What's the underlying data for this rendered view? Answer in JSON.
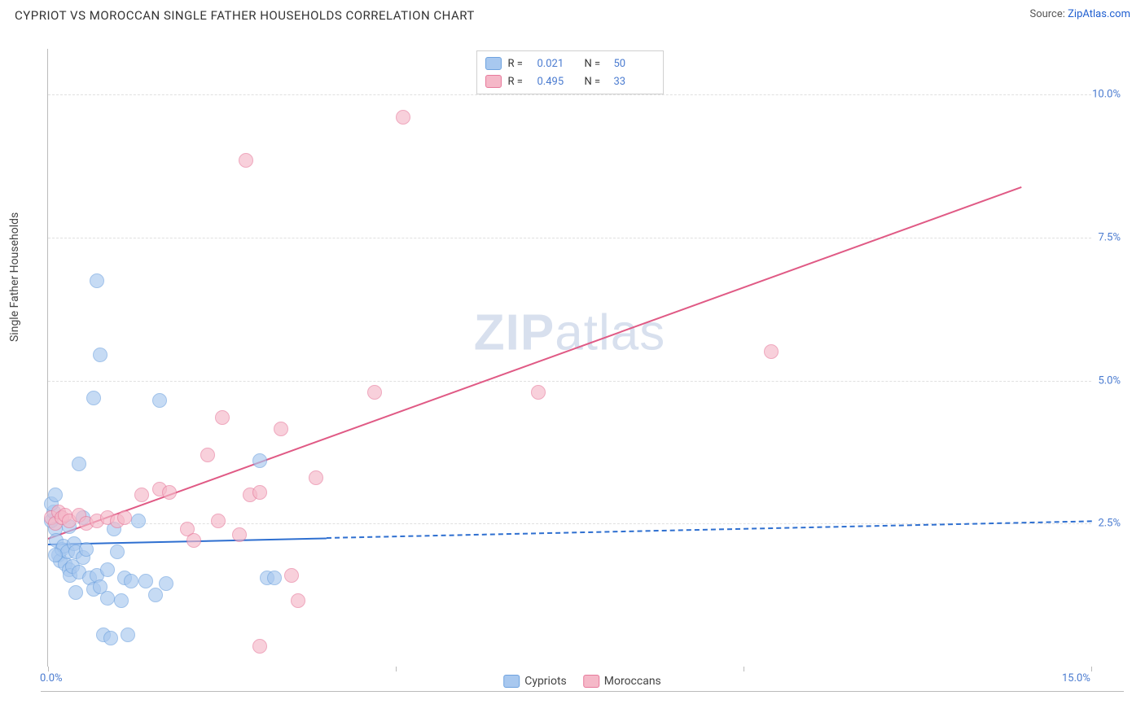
{
  "title": "CYPRIOT VS MOROCCAN SINGLE FATHER HOUSEHOLDS CORRELATION CHART",
  "source_label": "Source: ",
  "source_link_text": "ZipAtlas.com",
  "ylabel": "Single Father Households",
  "watermark_bold": "ZIP",
  "watermark_light": "atlas",
  "chart": {
    "type": "scatter",
    "xlim": [
      0,
      15
    ],
    "ylim": [
      0,
      10.8
    ],
    "x_ticks": [
      0,
      5,
      10,
      15
    ],
    "x_tick_labels": [
      "0.0%",
      "",
      "",
      "15.0%"
    ],
    "y_ticks": [
      2.5,
      5.0,
      7.5,
      10.0
    ],
    "y_tick_labels": [
      "2.5%",
      "5.0%",
      "7.5%",
      "10.0%"
    ],
    "grid_color": "#e0e0e0",
    "axis_color": "#bbbbbb",
    "label_color": "#4a7bd0",
    "background_color": "#ffffff",
    "marker_radius": 9,
    "marker_opacity": 0.65,
    "series": [
      {
        "name": "Cypriots",
        "color_fill": "#a8c8ef",
        "color_stroke": "#6fa3df",
        "R": "0.021",
        "N": "50",
        "trend": {
          "x0": 0,
          "y0": 2.15,
          "x1": 15,
          "y1": 2.55,
          "solid_until_x": 4.0,
          "color": "#2e6fd0",
          "width": 2
        },
        "points": [
          [
            0.05,
            2.55
          ],
          [
            0.08,
            2.7
          ],
          [
            0.1,
            2.4
          ],
          [
            0.12,
            2.2
          ],
          [
            0.15,
            1.95
          ],
          [
            0.18,
            1.85
          ],
          [
            0.2,
            2.05
          ],
          [
            0.22,
            2.1
          ],
          [
            0.25,
            1.8
          ],
          [
            0.28,
            2.0
          ],
          [
            0.3,
            1.7
          ],
          [
            0.32,
            1.6
          ],
          [
            0.35,
            1.75
          ],
          [
            0.38,
            2.15
          ],
          [
            0.4,
            2.0
          ],
          [
            0.45,
            1.65
          ],
          [
            0.5,
            1.9
          ],
          [
            0.55,
            2.05
          ],
          [
            0.6,
            1.55
          ],
          [
            0.65,
            1.35
          ],
          [
            0.7,
            1.6
          ],
          [
            0.75,
            1.4
          ],
          [
            0.8,
            0.55
          ],
          [
            0.85,
            1.2
          ],
          [
            0.9,
            0.5
          ],
          [
            0.95,
            2.4
          ],
          [
            1.05,
            1.15
          ],
          [
            1.1,
            1.55
          ],
          [
            1.15,
            0.55
          ],
          [
            1.2,
            1.5
          ],
          [
            1.3,
            2.55
          ],
          [
            1.4,
            1.5
          ],
          [
            1.55,
            1.25
          ],
          [
            1.6,
            4.65
          ],
          [
            1.7,
            1.45
          ],
          [
            3.15,
            1.55
          ],
          [
            3.25,
            1.55
          ],
          [
            3.05,
            3.6
          ],
          [
            0.45,
            3.55
          ],
          [
            0.65,
            4.7
          ],
          [
            0.7,
            6.75
          ],
          [
            0.75,
            5.45
          ],
          [
            0.05,
            2.85
          ],
          [
            0.1,
            3.0
          ],
          [
            0.3,
            2.45
          ],
          [
            0.5,
            2.6
          ],
          [
            0.1,
            1.95
          ],
          [
            0.4,
            1.3
          ],
          [
            0.85,
            1.7
          ],
          [
            1.0,
            2.0
          ]
        ]
      },
      {
        "name": "Moroccans",
        "color_fill": "#f5b8c8",
        "color_stroke": "#e77a9c",
        "R": "0.495",
        "N": "33",
        "trend": {
          "x0": 0,
          "y0": 2.25,
          "x1": 14.0,
          "y1": 8.4,
          "solid_until_x": 14.0,
          "color": "#e05a85",
          "width": 2
        },
        "points": [
          [
            0.05,
            2.6
          ],
          [
            0.1,
            2.5
          ],
          [
            0.15,
            2.7
          ],
          [
            0.2,
            2.6
          ],
          [
            0.25,
            2.65
          ],
          [
            0.3,
            2.55
          ],
          [
            0.45,
            2.65
          ],
          [
            0.55,
            2.5
          ],
          [
            0.7,
            2.55
          ],
          [
            0.85,
            2.6
          ],
          [
            1.0,
            2.55
          ],
          [
            1.1,
            2.6
          ],
          [
            1.35,
            3.0
          ],
          [
            1.6,
            3.1
          ],
          [
            1.75,
            3.05
          ],
          [
            2.0,
            2.4
          ],
          [
            2.1,
            2.2
          ],
          [
            2.3,
            3.7
          ],
          [
            2.45,
            2.55
          ],
          [
            2.5,
            4.35
          ],
          [
            2.75,
            2.3
          ],
          [
            2.85,
            8.85
          ],
          [
            2.9,
            3.0
          ],
          [
            3.05,
            3.05
          ],
          [
            3.05,
            0.35
          ],
          [
            3.35,
            4.15
          ],
          [
            3.5,
            1.6
          ],
          [
            3.6,
            1.15
          ],
          [
            3.85,
            3.3
          ],
          [
            4.7,
            4.8
          ],
          [
            5.1,
            9.6
          ],
          [
            7.05,
            4.8
          ],
          [
            10.4,
            5.5
          ]
        ]
      }
    ]
  },
  "legend_top": {
    "r_label": "R  =",
    "n_label": "N  ="
  },
  "legend_bottom": [
    {
      "label": "Cypriots",
      "series_idx": 0
    },
    {
      "label": "Moroccans",
      "series_idx": 1
    }
  ]
}
